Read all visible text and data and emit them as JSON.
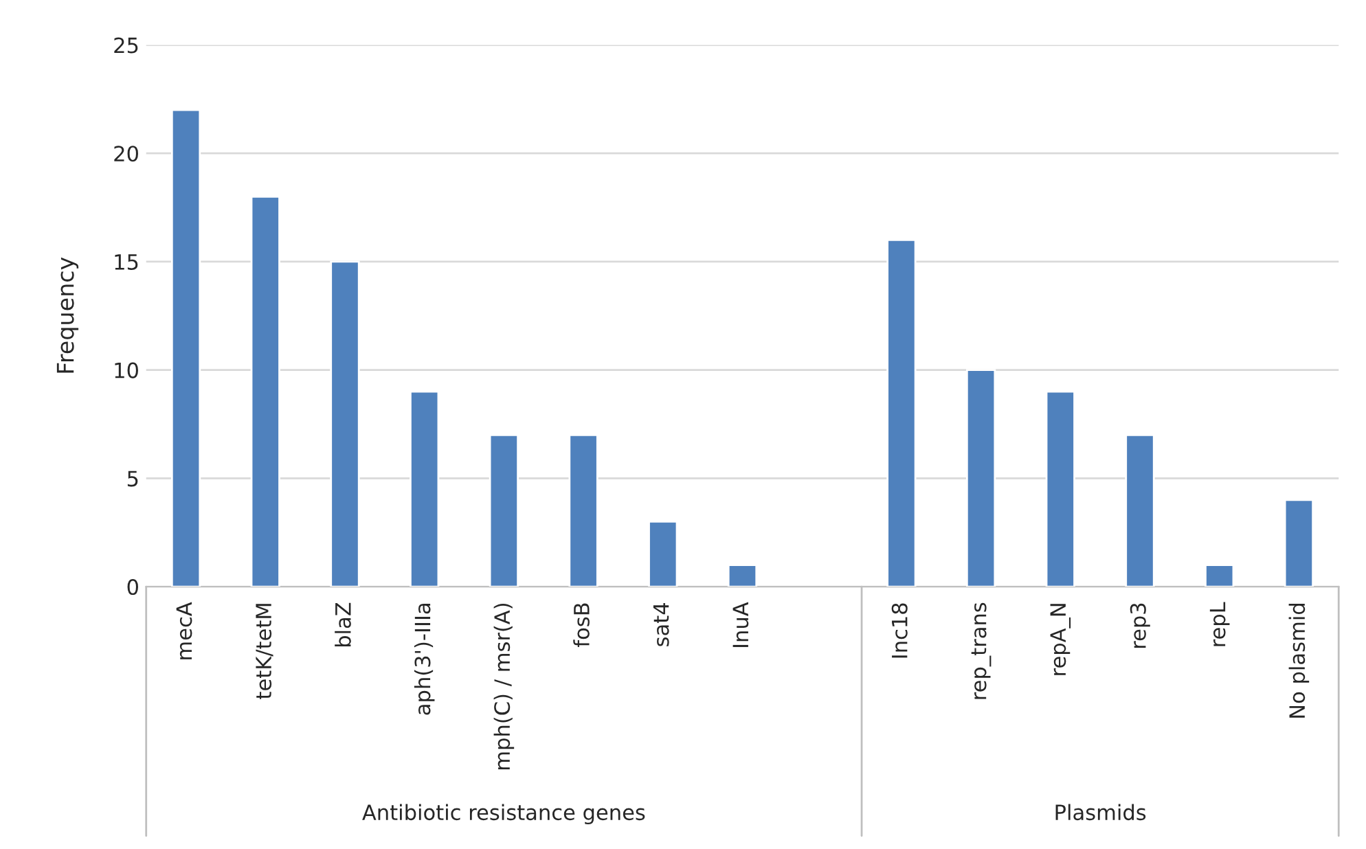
{
  "chart_data": {
    "type": "bar",
    "ylabel": "Frequency",
    "categories": [
      "mecA",
      "tetK/tetM",
      "blaZ",
      "aph(3')-IIIa",
      "mph(C) / msr(A)",
      "fosB",
      "sat4",
      "InuA",
      null,
      "Inc18",
      "rep_trans",
      "repA_N",
      "rep3",
      "repL",
      "No plasmid"
    ],
    "values": [
      22,
      18,
      15,
      9,
      7,
      7,
      3,
      1,
      null,
      16,
      10,
      9,
      7,
      1,
      4
    ],
    "color": "#4f81bd",
    "ylim": [
      0,
      25
    ],
    "yticks": [
      0,
      5,
      10,
      15,
      20,
      25
    ],
    "grid": "y",
    "annotations": [
      "Antibiotic resistance genes",
      "Plasmids"
    ]
  }
}
